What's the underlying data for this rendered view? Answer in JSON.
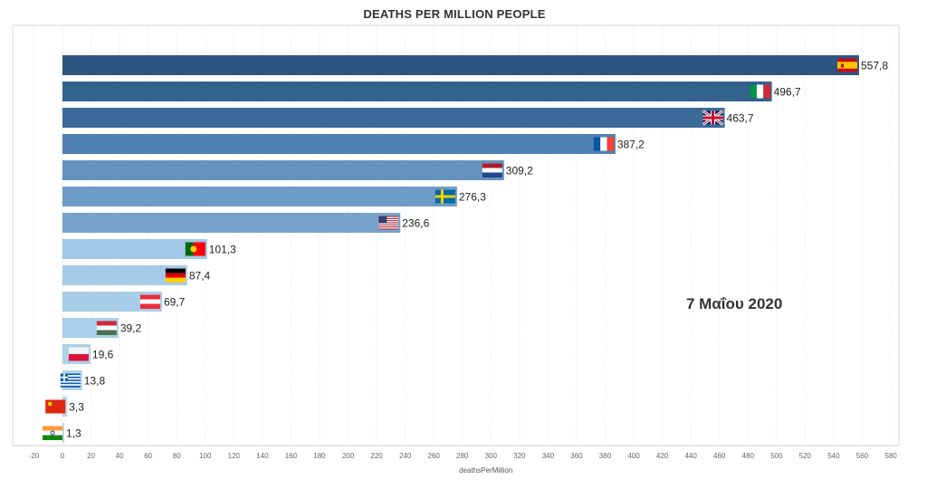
{
  "chart_data": {
    "type": "bar",
    "orientation": "horizontal",
    "title": "DEATHS PER MILLION PEOPLE",
    "xlabel": "deathsPerMillion",
    "annotation": "7 Μαΐου 2020",
    "xlim": [
      -20,
      580
    ],
    "x_ticks": [
      -20,
      0,
      20,
      40,
      60,
      80,
      100,
      120,
      140,
      160,
      180,
      200,
      220,
      240,
      260,
      280,
      300,
      320,
      340,
      360,
      380,
      400,
      420,
      440,
      460,
      480,
      500,
      520,
      540,
      560,
      580
    ],
    "grid": true,
    "bars": [
      {
        "value": 557.8,
        "label": "557,8",
        "flag": "spain-flag-icon",
        "color": "#2d5582"
      },
      {
        "value": 496.7,
        "label": "496,7",
        "flag": "italy-flag-icon",
        "color": "#34628f"
      },
      {
        "value": 463.7,
        "label": "463,7",
        "flag": "uk-flag-icon",
        "color": "#3b6b98"
      },
      {
        "value": 387.2,
        "label": "387,2",
        "flag": "france-flag-icon",
        "color": "#4f81b0"
      },
      {
        "value": 309.2,
        "label": "309,2",
        "flag": "netherlands-flag-icon",
        "color": "#6593bf"
      },
      {
        "value": 276.3,
        "label": "276,3",
        "flag": "sweden-flag-icon",
        "color": "#6e9cc6"
      },
      {
        "value": 236.6,
        "label": "236,6",
        "flag": "usa-flag-icon",
        "color": "#77a3cb"
      },
      {
        "value": 101.3,
        "label": "101,3",
        "flag": "portugal-flag-icon",
        "color": "#a1c8e6"
      },
      {
        "value": 87.4,
        "label": "87,4",
        "flag": "germany-flag-icon",
        "color": "#a5cbe8"
      },
      {
        "value": 69.7,
        "label": "69,7",
        "flag": "austria-flag-icon",
        "color": "#a7cde8"
      },
      {
        "value": 39.2,
        "label": "39,2",
        "flag": "hungary-flag-icon",
        "color": "#aacfea"
      },
      {
        "value": 19.6,
        "label": "19,6",
        "flag": "poland-flag-icon",
        "color": "#aed1ea"
      },
      {
        "value": 13.8,
        "label": "13,8",
        "flag": "greece-flag-icon",
        "color": "#b1d3eb"
      },
      {
        "value": 3.3,
        "label": "3,3",
        "flag": "china-flag-icon",
        "color": "#b4d5ec"
      },
      {
        "value": 1.3,
        "label": "1,3",
        "flag": "india-flag-icon",
        "color": "#b6d6ec"
      }
    ]
  }
}
